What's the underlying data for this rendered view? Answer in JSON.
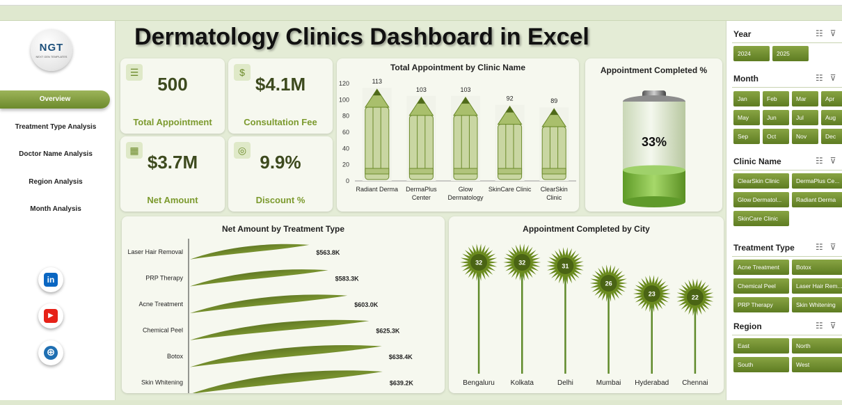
{
  "header": {
    "title": "Dermatology Clinics Dashboard in Excel"
  },
  "logo": {
    "mark": "NGT",
    "sub": "NEXT GEN TEMPLATES"
  },
  "nav": [
    {
      "id": "overview",
      "label": "Overview",
      "active": true
    },
    {
      "id": "treatment-type-analysis",
      "label": "Treatment Type Analysis"
    },
    {
      "id": "doctor-name-analysis",
      "label": "Doctor Name Analysis"
    },
    {
      "id": "region-analysis",
      "label": "Region Analysis"
    },
    {
      "id": "month-analysis",
      "label": "Month Analysis"
    }
  ],
  "social": [
    {
      "id": "linkedin",
      "icon": "linkedin-icon",
      "glyph": "in",
      "color": "#0a66c2"
    },
    {
      "id": "youtube",
      "icon": "youtube-icon",
      "glyph": "▶",
      "color": "#e62117"
    },
    {
      "id": "website",
      "icon": "globe-icon",
      "glyph": "⊕",
      "color": "#1f6fb2"
    }
  ],
  "kpis": {
    "total_appointment": {
      "value": "500",
      "label": "Total Appointment",
      "icon": "clipboard-icon"
    },
    "consultation_fee": {
      "value": "$4.1M",
      "label": "Consultation Fee",
      "icon": "money-bag-icon"
    },
    "net_amount": {
      "value": "$3.7M",
      "label": "Net Amount",
      "icon": "calendar-icon"
    },
    "discount": {
      "value": "9.9%",
      "label": "Discount %",
      "icon": "coins-icon"
    }
  },
  "chart_data": [
    {
      "type": "bar",
      "title": "Total Appointment by Clinic Name",
      "categories": [
        "Radiant Derma",
        "DermaPlus Center",
        "Glow Dermatology",
        "SkinCare Clinic",
        "ClearSkin Clinic"
      ],
      "category_lines": [
        [
          "Radiant Derma"
        ],
        [
          "DermaPlus",
          "Center"
        ],
        [
          "Glow",
          "Dermatology"
        ],
        [
          "SkinCare Clinic"
        ],
        [
          "ClearSkin",
          "Clinic"
        ]
      ],
      "values": [
        113,
        103,
        103,
        92,
        89
      ],
      "ylim": [
        0,
        120
      ],
      "yticks": [
        0,
        20,
        40,
        60,
        80,
        100,
        120
      ],
      "marker": "pencil",
      "color": "#8aa64a"
    },
    {
      "type": "bar",
      "title": "Appointment Completed %",
      "values": [
        0.33
      ],
      "value_label": "33%",
      "marker": "battery",
      "color": "#86c44a"
    },
    {
      "type": "bar",
      "orientation": "horizontal",
      "title": "Net Amount by Treatment Type",
      "categories": [
        "Laser Hair Removal",
        "PRP Therapy",
        "Acne Treatment",
        "Chemical Peel",
        "Botox",
        "Skin Whitening"
      ],
      "values": [
        563.8,
        583.3,
        603.0,
        625.3,
        638.4,
        639.2
      ],
      "value_labels": [
        "$563.8K",
        "$583.3K",
        "$603.0K",
        "$625.3K",
        "$638.4K",
        "$639.2K"
      ],
      "marker": "leaf",
      "color": "#5a6e22"
    },
    {
      "type": "bar",
      "title": "Appointment Completed by City",
      "categories": [
        "Bengaluru",
        "Kolkata",
        "Delhi",
        "Mumbai",
        "Hyderabad",
        "Chennai"
      ],
      "values": [
        32,
        32,
        31,
        26,
        23,
        22
      ],
      "marker": "starburst-lollipop",
      "color": "#6b8a1f"
    }
  ],
  "slicers": {
    "year": {
      "title": "Year",
      "items": [
        "2024",
        "2025"
      ]
    },
    "month": {
      "title": "Month",
      "items": [
        "Jan",
        "Feb",
        "Mar",
        "Apr",
        "May",
        "Jun",
        "Jul",
        "Aug",
        "Sep",
        "Oct",
        "Nov",
        "Dec"
      ]
    },
    "clinic": {
      "title": "Clinic Name",
      "items": [
        "ClearSkin Clinic",
        "DermaPlus Ce...",
        "Glow Dermatol...",
        "Radiant Derma",
        "SkinCare Clinic"
      ]
    },
    "treatment": {
      "title": "Treatment Type",
      "items": [
        "Acne Treatment",
        "Botox",
        "Chemical Peel",
        "Laser Hair Rem...",
        "PRP Therapy",
        "Skin Whitening"
      ]
    },
    "region": {
      "title": "Region",
      "items": [
        "East",
        "North",
        "South",
        "West"
      ]
    },
    "icons": {
      "multiselect": "multi-select-icon",
      "filter": "clear-filter-icon"
    }
  }
}
